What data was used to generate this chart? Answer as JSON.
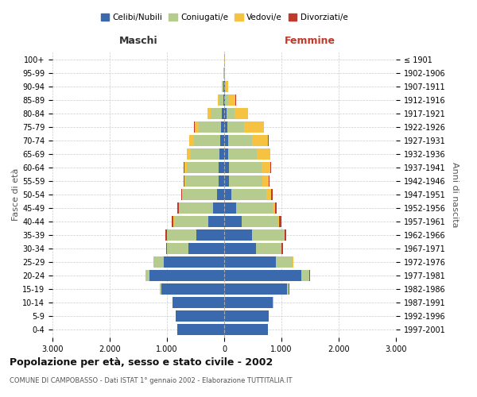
{
  "age_groups": [
    "0-4",
    "5-9",
    "10-14",
    "15-19",
    "20-24",
    "25-29",
    "30-34",
    "35-39",
    "40-44",
    "45-49",
    "50-54",
    "55-59",
    "60-64",
    "65-69",
    "70-74",
    "75-79",
    "80-84",
    "85-89",
    "90-94",
    "95-99",
    "100+"
  ],
  "birth_years": [
    "1997-2001",
    "1992-1996",
    "1987-1991",
    "1982-1986",
    "1977-1981",
    "1972-1976",
    "1967-1971",
    "1962-1966",
    "1957-1961",
    "1952-1956",
    "1947-1951",
    "1942-1946",
    "1937-1941",
    "1932-1936",
    "1927-1931",
    "1922-1926",
    "1917-1921",
    "1912-1916",
    "1907-1911",
    "1902-1906",
    "≤ 1901"
  ],
  "males": {
    "celibi": [
      820,
      850,
      900,
      1100,
      1300,
      1050,
      620,
      480,
      280,
      200,
      120,
      100,
      95,
      80,
      70,
      60,
      40,
      20,
      10,
      5,
      2
    ],
    "coniugati": [
      0,
      2,
      5,
      20,
      70,
      180,
      380,
      520,
      600,
      590,
      600,
      570,
      560,
      510,
      460,
      380,
      200,
      60,
      15,
      5,
      2
    ],
    "vedovi": [
      0,
      0,
      0,
      1,
      2,
      2,
      2,
      3,
      5,
      5,
      10,
      20,
      40,
      60,
      80,
      80,
      50,
      30,
      10,
      3,
      1
    ],
    "divorziati": [
      0,
      0,
      0,
      1,
      3,
      5,
      15,
      25,
      35,
      30,
      25,
      12,
      10,
      8,
      6,
      5,
      4,
      2,
      1,
      0,
      0
    ]
  },
  "females": {
    "nubili": [
      760,
      780,
      850,
      1100,
      1350,
      900,
      560,
      480,
      300,
      210,
      120,
      90,
      80,
      70,
      65,
      50,
      35,
      20,
      10,
      5,
      2
    ],
    "coniugate": [
      0,
      2,
      5,
      30,
      140,
      300,
      440,
      570,
      640,
      640,
      620,
      570,
      570,
      500,
      420,
      300,
      150,
      50,
      15,
      5,
      2
    ],
    "vedove": [
      0,
      0,
      0,
      1,
      2,
      3,
      5,
      10,
      20,
      40,
      80,
      120,
      160,
      230,
      280,
      340,
      230,
      130,
      40,
      10,
      3
    ],
    "divorziate": [
      0,
      0,
      0,
      1,
      3,
      8,
      20,
      30,
      40,
      30,
      30,
      15,
      15,
      8,
      6,
      5,
      3,
      2,
      1,
      0,
      0
    ]
  },
  "colors": {
    "celibi": "#3a6aad",
    "coniugati": "#b5cc8e",
    "vedovi": "#f5c242",
    "divorziati": "#c0392b"
  },
  "xlim": 3000,
  "title": "Popolazione per età, sesso e stato civile - 2002",
  "subtitle": "COMUNE DI CAMPOBASSO - Dati ISTAT 1° gennaio 2002 - Elaborazione TUTTITALIA.IT",
  "xlabel_left": "Maschi",
  "xlabel_right": "Femmine",
  "ylabel_left": "Fasce di età",
  "ylabel_right": "Anni di nascita",
  "legend_labels": [
    "Celibi/Nubili",
    "Coniugati/e",
    "Vedovi/e",
    "Divorziati/e"
  ],
  "xtick_labels": [
    "3.000",
    "2.000",
    "1.000",
    "0",
    "1.000",
    "2.000",
    "3.000"
  ],
  "background_color": "#ffffff",
  "grid_color": "#cccccc"
}
